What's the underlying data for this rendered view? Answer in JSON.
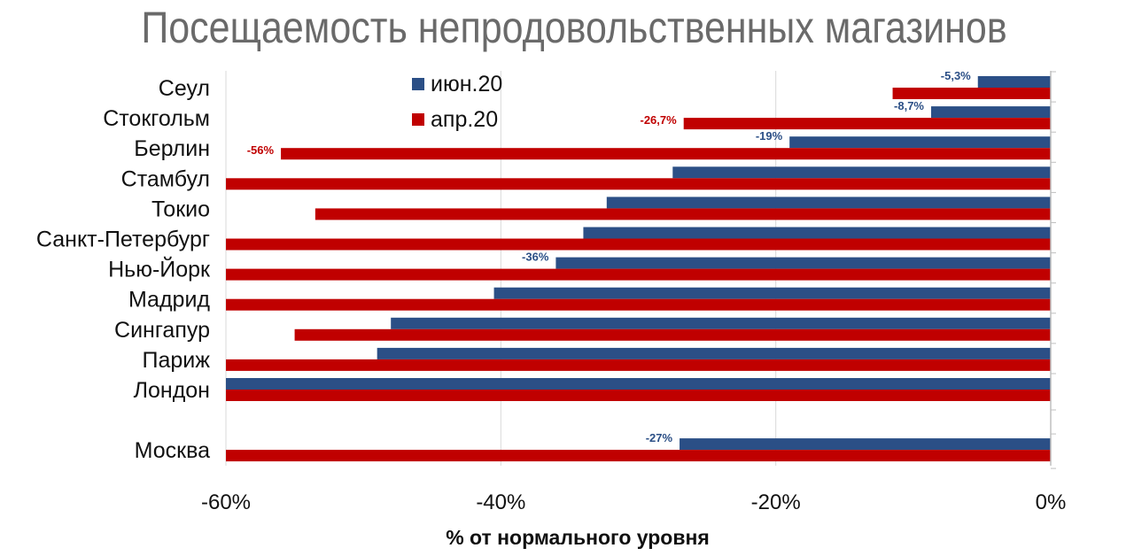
{
  "title": "Посещаемость непродовольственных магазинов",
  "chart_data": {
    "type": "bar",
    "orientation": "horizontal",
    "title": "Посещаемость непродовольственных магазинов",
    "xlabel": "% от нормального уровня",
    "ylabel": "",
    "xlim": [
      -60,
      0
    ],
    "x_ticks": [
      "-60%",
      "-40%",
      "-20%",
      "0%"
    ],
    "x_tick_values": [
      -60,
      -40,
      -20,
      0
    ],
    "grid": "vertical",
    "legend_position": "top-left",
    "categories": [
      "Сеул",
      "Стокгольм",
      "Берлин",
      "Стамбул",
      "Токио",
      "Санкт-Петербург",
      "Нью-Йорк",
      "Мадрид",
      "Сингапур",
      "Париж",
      "Лондон",
      "Москва"
    ],
    "series": [
      {
        "name": "июн.20",
        "color": "#2b4f86",
        "values": [
          -5.3,
          -8.7,
          -19,
          -27.5,
          -32.3,
          -34,
          -36,
          -40.5,
          -48,
          -49,
          -60,
          -27
        ],
        "labels": [
          "-5,3%",
          "-8,7%",
          "-19%",
          "",
          "",
          "",
          "-36%",
          "",
          "",
          "",
          "",
          "-27%"
        ]
      },
      {
        "name": "апр.20",
        "color": "#c00000",
        "values": [
          -11.5,
          -26.7,
          -56,
          -60,
          -53.5,
          -60,
          -60,
          -60,
          -55,
          -60,
          -60,
          -60
        ],
        "labels": [
          "",
          "-26,7%",
          "-56%",
          "",
          "",
          "",
          "",
          "",
          "",
          "",
          "",
          ""
        ]
      }
    ]
  }
}
